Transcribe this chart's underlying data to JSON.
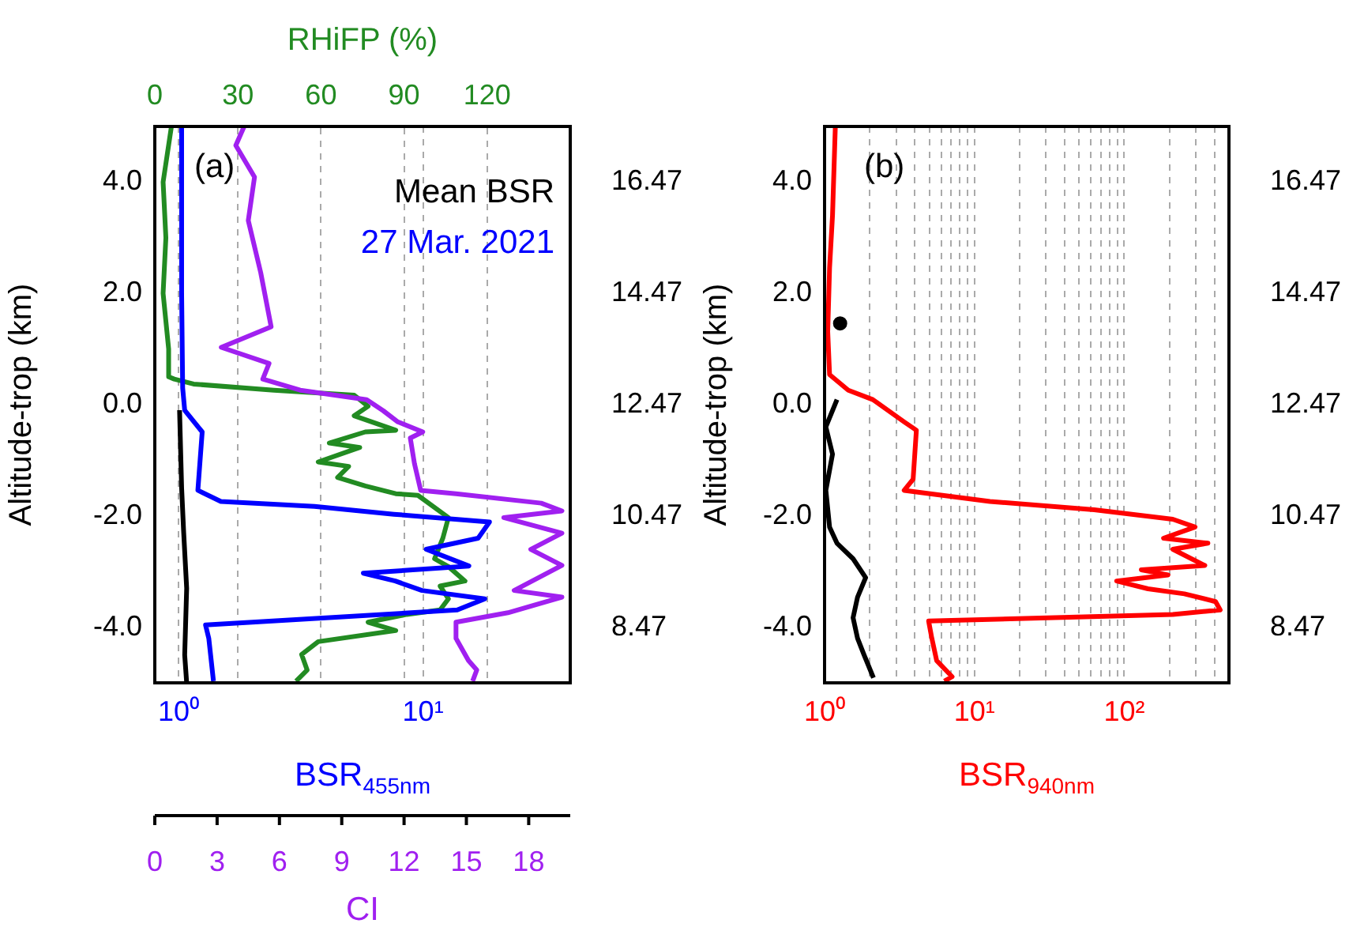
{
  "chart_data": [
    {
      "type": "line",
      "ylabel": "Altitude-trop (km)",
      "xlabel": "BSR$_{455nm}$",
      "x2label": "RHiFP (%)",
      "annotations": [
        "(a)",
        "Mean BSR",
        "27 Mar. 2021"
      ],
      "log": "x",
      "grid": "x",
      "xlim": [
        0.8,
        40
      ],
      "xticks": [
        {
          "value": 1,
          "label": "10⁰"
        },
        {
          "value": 10,
          "label": "10¹"
        }
      ],
      "x2lim": [
        0,
        150
      ],
      "x2ticks": [
        0,
        30,
        60,
        90,
        120
      ],
      "ylim": [
        -5,
        5
      ],
      "yticks": [
        {
          "value": -4,
          "label": "-4.0"
        },
        {
          "value": -2,
          "label": "-2.0"
        },
        {
          "value": 0,
          "label": "0.0"
        },
        {
          "value": 2,
          "label": "2.0"
        },
        {
          "value": 4,
          "label": "4.0"
        }
      ],
      "y2lim": [
        7.47,
        17.47
      ],
      "y2ticks": [
        8.47,
        10.47,
        12.47,
        14.47,
        16.47
      ],
      "series": [
        {
          "color": "#0000ff",
          "x": [
            1.03,
            1.03,
            1.04,
            1.06,
            1.25,
            1.2,
            1.49,
            3.6,
            7.6,
            18.7,
            16.8,
            10.3,
            15.4,
            5.7,
            7.7,
            9.9,
            17.9,
            13.8,
            1.29,
            1.33,
            1.39
          ],
          "values": [
            5,
            2,
            0.3,
            -0.1,
            -0.49,
            -1.54,
            -1.74,
            -1.83,
            -1.97,
            -2.11,
            -2.4,
            -2.6,
            -2.9,
            -3.03,
            -3.17,
            -3.34,
            -3.49,
            -3.69,
            -3.96,
            -4.2,
            -4.97
          ]
        },
        {
          "color": "#000000",
          "x": [
            1.01,
            1.03,
            1.05,
            1.08,
            1.06,
            1.08
          ],
          "values": [
            -0.1,
            -1.5,
            -2.3,
            -3.3,
            -4.5,
            -5
          ]
        },
        {
          "color": "#228b22",
          "axis": "x2",
          "x": [
            6,
            3,
            4,
            3,
            5,
            5,
            7,
            14,
            43,
            72,
            77,
            72,
            87,
            76,
            63,
            74,
            59,
            70,
            66,
            76,
            87,
            95,
            106,
            104,
            101,
            106,
            112,
            103,
            106,
            103,
            91,
            77,
            87,
            59,
            53,
            55,
            51
          ],
          "values": [
            5,
            4,
            3,
            2,
            1,
            0.5,
            0.46,
            0.37,
            0.26,
            0.17,
            -0.03,
            -0.2,
            -0.46,
            -0.49,
            -0.69,
            -0.77,
            -1.03,
            -1.11,
            -1.31,
            -1.46,
            -1.6,
            -1.63,
            -2.03,
            -2.4,
            -2.77,
            -2.91,
            -3.17,
            -3.26,
            -3.49,
            -3.69,
            -3.77,
            -3.91,
            -4.06,
            -4.26,
            -4.49,
            -4.77,
            -4.97
          ]
        }
      ]
    },
    {
      "type": "line",
      "xlabel": "CI",
      "tick_labels": "x",
      "xlim": [
        0,
        20
      ],
      "xticks": [
        0,
        3,
        6,
        9,
        12,
        15,
        18
      ],
      "ylim": [
        -5,
        5
      ],
      "series": [
        {
          "color": "#a020f0",
          "x": [
            4.3,
            3.9,
            4.8,
            4.5,
            5.1,
            5.6,
            3.2,
            5.5,
            5.2,
            7,
            10.2,
            11,
            11.7,
            12.9,
            12.3,
            12.5,
            12.8,
            14.5,
            18.6,
            19.6,
            16.8,
            19.6,
            18.1,
            19.6,
            17.3,
            19.6,
            17,
            14.5,
            14.5,
            15.1,
            15.5,
            15.3
          ],
          "values": [
            5,
            4.66,
            4.09,
            3.31,
            2.37,
            1.4,
            1.03,
            0.74,
            0.46,
            0.26,
            0.09,
            -0.11,
            -0.31,
            -0.49,
            -0.6,
            -1.06,
            -1.54,
            -1.6,
            -1.77,
            -1.91,
            -2.03,
            -2.31,
            -2.6,
            -2.89,
            -3.34,
            -3.46,
            -3.74,
            -3.91,
            -4.2,
            -4.6,
            -4.77,
            -4.97
          ]
        }
      ]
    },
    {
      "type": "line",
      "ylabel": "Altitude-trop (km)",
      "xlabel": "BSR$_{940nm}$",
      "annotations": [
        "(b)"
      ],
      "log": "x",
      "grid": "x",
      "xlim": [
        1,
        500
      ],
      "xticks": [
        {
          "value": 1,
          "label": "10⁰"
        },
        {
          "value": 2,
          "label": null
        },
        {
          "value": 3,
          "label": null
        },
        {
          "value": 4,
          "label": null
        },
        {
          "value": 5,
          "label": null
        },
        {
          "value": 6,
          "label": null
        },
        {
          "value": 7,
          "label": null
        },
        {
          "value": 8,
          "label": null
        },
        {
          "value": 9,
          "label": null
        },
        {
          "value": 10,
          "label": "10¹"
        },
        {
          "value": 20,
          "label": null
        },
        {
          "value": 30,
          "label": null
        },
        {
          "value": 40,
          "label": null
        },
        {
          "value": 50,
          "label": null
        },
        {
          "value": 60,
          "label": null
        },
        {
          "value": 70,
          "label": null
        },
        {
          "value": 80,
          "label": null
        },
        {
          "value": 90,
          "label": null
        },
        {
          "value": 100,
          "label": "10²"
        },
        {
          "value": 200,
          "label": null
        },
        {
          "value": 300,
          "label": null
        },
        {
          "value": 400,
          "label": null
        }
      ],
      "ylim": [
        -5,
        5
      ],
      "yticks": [
        {
          "value": -4,
          "label": "-4.0"
        },
        {
          "value": -2,
          "label": "-2.0"
        },
        {
          "value": 0,
          "label": "0.0"
        },
        {
          "value": 2,
          "label": "2.0"
        },
        {
          "value": 4,
          "label": "4.0"
        }
      ],
      "y2lim": [
        7.47,
        17.47
      ],
      "y2ticks": [
        8.47,
        10.47,
        12.47,
        14.47,
        16.47
      ],
      "series": [
        {
          "color": "#ff0000",
          "x": [
            1.18,
            1.13,
            1.08,
            1.05,
            1.08,
            1.44,
            2.1,
            3.4,
            4.1,
            3.9,
            3.4,
            12.7,
            63,
            211,
            297,
            183,
            362,
            211,
            345,
            130,
            196,
            89,
            144,
            252,
            407,
            437,
            211,
            4.95,
            5.2,
            5.6,
            7.1,
            6.3
          ],
          "values": [
            5,
            3.4,
            2.46,
            1.31,
            0.54,
            0.26,
            0.09,
            -0.31,
            -0.46,
            -1.34,
            -1.54,
            -1.74,
            -1.89,
            -2.06,
            -2.2,
            -2.4,
            -2.49,
            -2.6,
            -2.89,
            -2.97,
            -3.06,
            -3.17,
            -3.31,
            -3.4,
            -3.54,
            -3.69,
            -3.77,
            -3.89,
            -4.2,
            -4.6,
            -4.89,
            -4.97
          ]
        },
        {
          "color": "#000000",
          "x": [
            1.27,
            null,
            1.21,
            1.02,
            1.13,
            1.02,
            1.08,
            1.21,
            1.55,
            1.88,
            1.66,
            1.55,
            1.66,
            1.83,
            2.12
          ],
          "values": [
            1.46,
            null,
            0.09,
            -0.4,
            -0.89,
            -1.54,
            -2.2,
            -2.49,
            -2.77,
            -3.11,
            -3.46,
            -3.83,
            -4.2,
            -4.49,
            -4.91
          ]
        }
      ]
    }
  ]
}
